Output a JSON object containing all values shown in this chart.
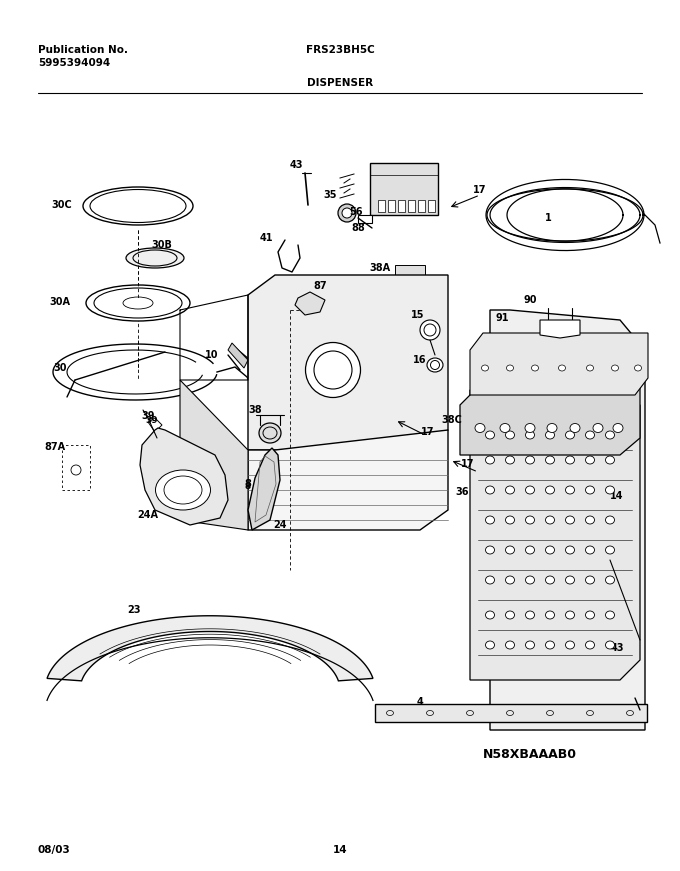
{
  "title_left_line1": "Publication No.",
  "title_left_line2": "5995394094",
  "title_center": "FRS23BH5C",
  "subtitle_center": "DISPENSER",
  "footer_left": "08/03",
  "footer_center": "14",
  "diagram_code": "N58XBAAAB0",
  "bg_color": "#ffffff",
  "text_color": "#000000",
  "fig_width": 6.8,
  "fig_height": 8.71,
  "dpi": 100
}
